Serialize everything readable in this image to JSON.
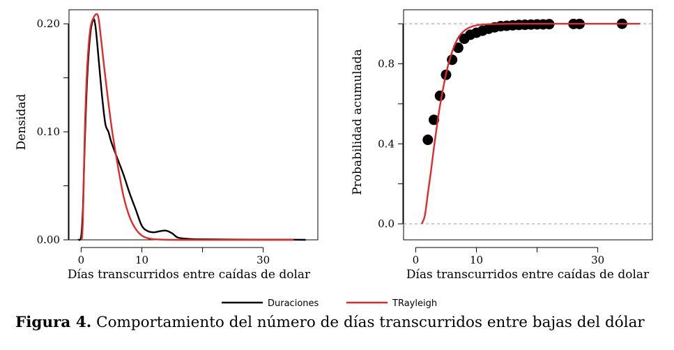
{
  "chart_data": [
    {
      "type": "line",
      "xlabel": "Días transcurridos entre caídas de dolar",
      "ylabel": "Densidad",
      "xlim": [
        -2,
        39
      ],
      "ylim": [
        0,
        0.213
      ],
      "xticks": [
        0,
        10,
        30
      ],
      "xtick_labels": [
        "0",
        "10",
        "30"
      ],
      "yticks": [
        0.0,
        0.1,
        0.2
      ],
      "ytick_labels": [
        "0.00",
        "0.10",
        "0.20"
      ],
      "grid": false,
      "series": [
        {
          "name": "Duraciones",
          "color": "#000000",
          "x": [
            -0.5,
            0,
            0.3,
            0.6,
            1,
            1.5,
            2,
            2.3,
            2.6,
            3,
            3.5,
            4,
            4.5,
            5,
            6,
            7,
            8,
            9,
            10,
            11,
            12,
            13,
            14,
            15,
            16,
            18,
            20,
            25,
            30,
            35,
            37
          ],
          "y": [
            0.0,
            0.003,
            0.03,
            0.09,
            0.15,
            0.19,
            0.204,
            0.2,
            0.185,
            0.16,
            0.13,
            0.107,
            0.1,
            0.09,
            0.075,
            0.06,
            0.043,
            0.028,
            0.013,
            0.008,
            0.007,
            0.008,
            0.0085,
            0.006,
            0.002,
            0.0008,
            0.0005,
            0.0003,
            0.0002,
            0.0001,
            0.0
          ]
        },
        {
          "name": "TRayleigh",
          "color": "#e02a2a",
          "x": [
            0.1,
            0.3,
            0.6,
            1,
            1.5,
            2,
            2.5,
            2.8,
            3,
            3.5,
            4,
            5,
            6,
            7,
            8,
            9,
            10,
            11,
            12,
            14,
            16,
            20,
            25,
            30,
            35
          ],
          "y": [
            0.0,
            0.02,
            0.1,
            0.16,
            0.195,
            0.205,
            0.209,
            0.207,
            0.2,
            0.175,
            0.15,
            0.105,
            0.07,
            0.04,
            0.021,
            0.01,
            0.004,
            0.0015,
            0.0006,
            0.0001,
            0.0,
            0.0,
            0.0,
            0.0,
            0.0
          ]
        }
      ]
    },
    {
      "type": "scatter",
      "xlabel": "Días transcurridos entre caídas de dolar",
      "ylabel": "Probabilidad acumulada",
      "xlim": [
        -2,
        39
      ],
      "ylim": [
        -0.08,
        1.07
      ],
      "xticks": [
        0,
        10,
        30
      ],
      "xtick_labels": [
        "0",
        "10",
        "30"
      ],
      "yticks": [
        0.0,
        0.4,
        0.8
      ],
      "ytick_labels": [
        "0.0",
        "0.4",
        "0.8"
      ],
      "reference_lines": [
        0,
        1
      ],
      "grid": false,
      "series": [
        {
          "name": "Duraciones",
          "color": "#000000",
          "x": [
            2,
            3,
            4,
            5,
            6,
            7,
            8,
            9,
            10,
            11,
            12,
            13,
            14,
            15,
            16,
            17,
            18,
            19,
            20,
            21,
            22,
            26,
            27,
            34
          ],
          "y": [
            0.42,
            0.52,
            0.64,
            0.745,
            0.82,
            0.88,
            0.925,
            0.945,
            0.955,
            0.965,
            0.975,
            0.982,
            0.988,
            0.99,
            0.992,
            0.994,
            0.995,
            0.996,
            0.997,
            0.997,
            0.998,
            0.999,
            0.999,
            1.0
          ]
        },
        {
          "name": "TRayleigh",
          "color": "#e02a2a",
          "x": [
            1,
            1.5,
            2,
            2.5,
            3,
            3.5,
            4,
            5,
            6,
            7,
            8,
            9,
            10,
            11,
            12,
            14,
            16,
            20,
            25,
            30,
            35,
            37
          ],
          "y": [
            0.0,
            0.04,
            0.15,
            0.26,
            0.38,
            0.49,
            0.59,
            0.75,
            0.86,
            0.93,
            0.965,
            0.983,
            0.992,
            0.996,
            0.998,
            0.999,
            1.0,
            1.0,
            1.0,
            1.0,
            1.0,
            1.0
          ]
        }
      ]
    }
  ],
  "legend": {
    "items": [
      {
        "label": "Duraciones",
        "color": "#000000"
      },
      {
        "label": "TRayleigh",
        "color": "#e02a2a"
      }
    ]
  },
  "caption": {
    "lead": "Figura 4.",
    "text": " Comportamiento del número de días transcurridos entre bajas del dólar"
  }
}
